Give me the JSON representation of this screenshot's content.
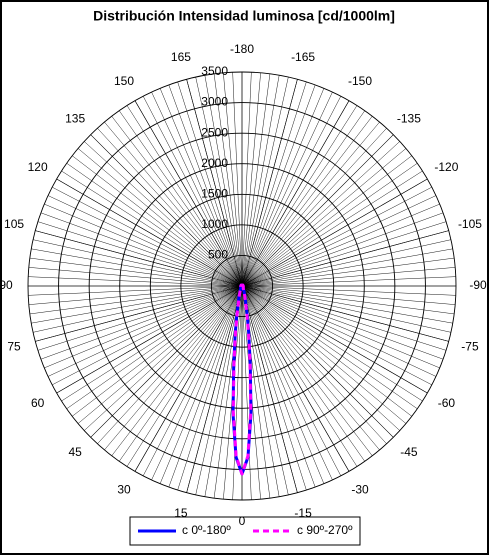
{
  "chart_data": {
    "type": "polar",
    "title": "Distribución Intensidad luminosa [cd/1000lm]",
    "x": [
      -180,
      -150,
      -120,
      -90,
      -60,
      -45,
      -30,
      -20,
      -15,
      -10,
      -8,
      -6,
      -4,
      -2,
      0,
      2,
      4,
      6,
      8,
      10,
      15,
      20,
      30,
      45,
      60,
      90,
      120,
      150,
      180
    ],
    "series": [
      {
        "name": "c 0º-180º",
        "color": "#0000ff",
        "dash": false,
        "values": [
          20,
          20,
          20,
          20,
          25,
          30,
          40,
          100,
          200,
          500,
          800,
          1300,
          2100,
          2800,
          3075,
          2800,
          2100,
          1300,
          800,
          500,
          200,
          100,
          40,
          30,
          25,
          20,
          20,
          20,
          20
        ]
      },
      {
        "name": "c 90º-270º",
        "color": "#ff00ff",
        "dash": true,
        "values": [
          20,
          20,
          20,
          20,
          25,
          30,
          40,
          90,
          180,
          450,
          750,
          1250,
          2050,
          2780,
          3075,
          2780,
          2050,
          1250,
          750,
          450,
          180,
          90,
          40,
          30,
          25,
          20,
          20,
          20,
          20
        ]
      }
    ],
    "rlim": [
      0,
      3500
    ],
    "rticks": [
      500,
      1000,
      1500,
      2000,
      2500,
      3000,
      3500
    ],
    "angle_ticks": [
      -180,
      -165,
      -150,
      -135,
      -120,
      -105,
      -90,
      -75,
      -60,
      -45,
      -30,
      -15,
      0,
      15,
      30,
      45,
      60,
      75,
      90,
      105,
      120,
      135,
      150,
      165
    ]
  }
}
